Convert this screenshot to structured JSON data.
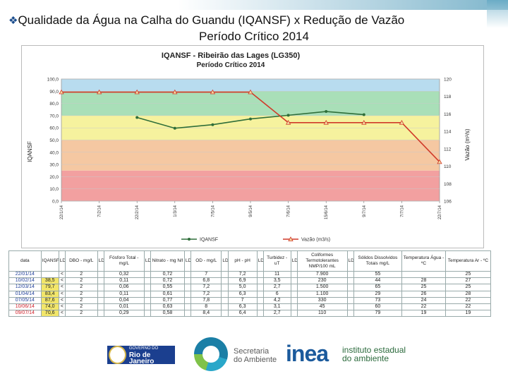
{
  "slide": {
    "title_line1": "Qualidade da Água na Calha do Guandu  (IQANSF) x Redução de Vazão",
    "title_line2": "Período Crítico 2014"
  },
  "chart_data": {
    "type": "line",
    "title": "IQANSF - Ribeirão das Lages (LG350)",
    "subtitle": "Período Crítico 2014",
    "ylabel_left": "IQANSF",
    "ylabel_right": "Vazão (m³/s)",
    "y_left_ticks": [
      "0,0",
      "10,0",
      "20,0",
      "30,0",
      "40,0",
      "50,0",
      "60,0",
      "70,0",
      "80,0",
      "90,0",
      "100,0"
    ],
    "y_right_ticks": [
      "106",
      "108",
      "110",
      "112",
      "114",
      "116",
      "118",
      "120"
    ],
    "ylim_left": [
      0,
      100
    ],
    "ylim_right": [
      106,
      120
    ],
    "x_ticks": [
      "22/1/14",
      "7/2/14",
      "22/2/14",
      "1/3/14",
      "7/5/14",
      "9/5/14",
      "7/6/14",
      "15/6/14",
      "9/7/14",
      "7/7/14",
      "22/7/14"
    ],
    "bands": [
      {
        "from": 0,
        "to": 25,
        "color": "#f2a0a0"
      },
      {
        "from": 25,
        "to": 50,
        "color": "#f5c8a2"
      },
      {
        "from": 50,
        "to": 70,
        "color": "#f6f29e"
      },
      {
        "from": 70,
        "to": 90,
        "color": "#a9dfb8"
      },
      {
        "from": 90,
        "to": 100,
        "color": "#b8dcef"
      }
    ],
    "series": [
      {
        "name": "IQANSF",
        "axis": "left",
        "color": "#2f6e3a",
        "x": [
          2,
          3,
          4,
          5,
          6,
          7,
          8
        ],
        "values": [
          68.5,
          59.7,
          62.6,
          67.3,
          70.3,
          73.4,
          70.8
        ]
      },
      {
        "name": "Vazão (m3/s)",
        "axis": "right",
        "color": "#d03a2a",
        "x": [
          0,
          1,
          2,
          3,
          4,
          5,
          6,
          7,
          8,
          9,
          10
        ],
        "values": [
          118.5,
          118.5,
          118.5,
          118.5,
          118.5,
          118.5,
          115,
          115,
          115,
          115,
          110.5
        ]
      }
    ],
    "legend": "bottom-center"
  },
  "table": {
    "headers": [
      "data",
      "IQANSF",
      "LD",
      "DBO - mg/L",
      "LD",
      "Fósforo Total - mg/L",
      "LD",
      "Nitrato - mg N/l",
      "LD",
      "OD - mg/L",
      "LD",
      "pH - pH",
      "LD",
      "Turbidez - uT",
      "LD",
      "Coliformes Termotolerantes NMP/100 mL",
      "LD",
      "Sólidos Dissolvidos Totais mg/L",
      "Temperatura Água - ºC",
      "Temperatura Ar - ºC"
    ],
    "rows": [
      [
        "22/01/14",
        "",
        "<",
        "2",
        "",
        "0,32",
        "",
        "0,72",
        "",
        "7",
        "",
        "7,2",
        "",
        "11",
        "",
        "7.900",
        "",
        "55",
        "",
        "25"
      ],
      [
        "10/02/14",
        "38,5",
        "<",
        "2",
        "",
        "0,11",
        "",
        "0,72",
        "",
        "6,8",
        "",
        "6,9",
        "",
        "3,5",
        "",
        "230",
        "",
        "44",
        "28",
        "27"
      ],
      [
        "12/03/14",
        "79,7",
        "<",
        "2",
        "",
        "0,06",
        "",
        "0,55",
        "",
        "7,2",
        "",
        "5,0",
        "",
        "2,7",
        "",
        "1.500",
        "",
        "65",
        "25",
        "25"
      ],
      [
        "01/04/14",
        "83,4",
        "<",
        "2",
        "",
        "0,11",
        "",
        "0,61",
        "",
        "7,2",
        "",
        "6,3",
        "",
        "6",
        "",
        "1.100",
        "",
        "29",
        "26",
        "28"
      ],
      [
        "07/05/14",
        "87,6",
        "<",
        "2",
        "",
        "0,04",
        "",
        "0,77",
        "",
        "7,8",
        "",
        "7",
        "",
        "4,2",
        "",
        "330",
        "",
        "73",
        "24",
        "22"
      ],
      [
        "10/06/14",
        "74,0",
        "<",
        "2",
        "",
        "0,01",
        "",
        "0,63",
        "",
        "8",
        "",
        "6,3",
        "",
        "3,1",
        "",
        "45",
        "",
        "60",
        "22",
        "22"
      ],
      [
        "09/07/14",
        "70,6",
        "<",
        "2",
        "",
        "0,29",
        "",
        "0,58",
        "",
        "8,4",
        "",
        "6,4",
        "",
        "2,7",
        "",
        "110",
        "",
        "79",
        "19",
        "19"
      ]
    ]
  },
  "logos": {
    "rj_small": "GOVERNO DO",
    "rj_big": "Rio de Janeiro",
    "sa_line1": "Secretaria",
    "sa_line2": "do Ambiente",
    "inea_big": "inea",
    "inea_line1": "instituto estadual",
    "inea_line2": "do ambiente"
  }
}
